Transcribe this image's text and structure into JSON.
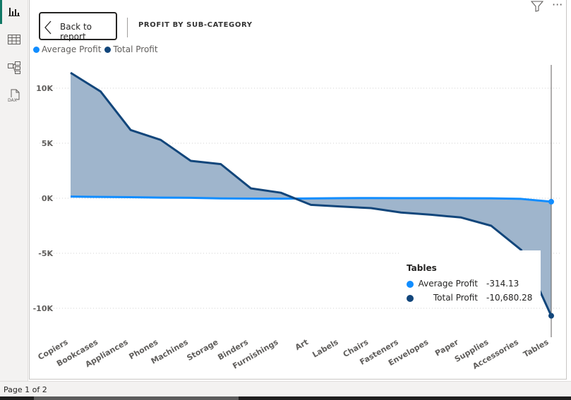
{
  "header": {
    "back_label": "Back to report",
    "title": "PROFIT BY SUB-CATEGORY"
  },
  "rail": {
    "icons": [
      "report-view-icon",
      "table-view-icon",
      "model-view-icon",
      "dax-query-icon"
    ],
    "dax_label": "DAX"
  },
  "colors": {
    "avg": "#118dff",
    "total": "#12467b",
    "area": "#9fb5cc"
  },
  "legend": [
    {
      "name": "Average Profit",
      "color": "#118dff"
    },
    {
      "name": "Total Profit",
      "color": "#12467b"
    }
  ],
  "tooltip": {
    "title": "Tables",
    "rows": [
      {
        "label": "Average Profit",
        "value": "-314.13",
        "color": "#118dff"
      },
      {
        "label": "Total Profit",
        "value": "-10,680.28",
        "color": "#12467b"
      }
    ]
  },
  "chart_data": {
    "type": "area",
    "categories": [
      "Copiers",
      "Bookcases",
      "Appliances",
      "Phones",
      "Machines",
      "Storage",
      "Binders",
      "Furnishings",
      "Art",
      "Labels",
      "Chairs",
      "Fasteners",
      "Envelopes",
      "Paper",
      "Supplies",
      "Accessories",
      "Tables"
    ],
    "series": [
      {
        "name": "Average Profit",
        "values": [
          150,
          120,
          100,
          60,
          40,
          -20,
          -30,
          -40,
          -20,
          10,
          20,
          10,
          10,
          0,
          -10,
          -60,
          -314.13
        ]
      },
      {
        "name": "Total Profit",
        "values": [
          11400,
          9700,
          6200,
          5300,
          3400,
          3100,
          900,
          500,
          -600,
          -750,
          -900,
          -1300,
          -1500,
          -1750,
          -2500,
          -4700,
          -10680.28
        ]
      }
    ],
    "yticks": [
      "10K",
      "5K",
      "0K",
      "-5K",
      "-10K"
    ],
    "ytick_values": [
      10000,
      5000,
      0,
      -5000,
      -10000
    ],
    "ylim": [
      -12000,
      12000
    ],
    "grid": true,
    "legend_position": "top-left"
  },
  "status": {
    "page": "Page 1 of 2"
  }
}
